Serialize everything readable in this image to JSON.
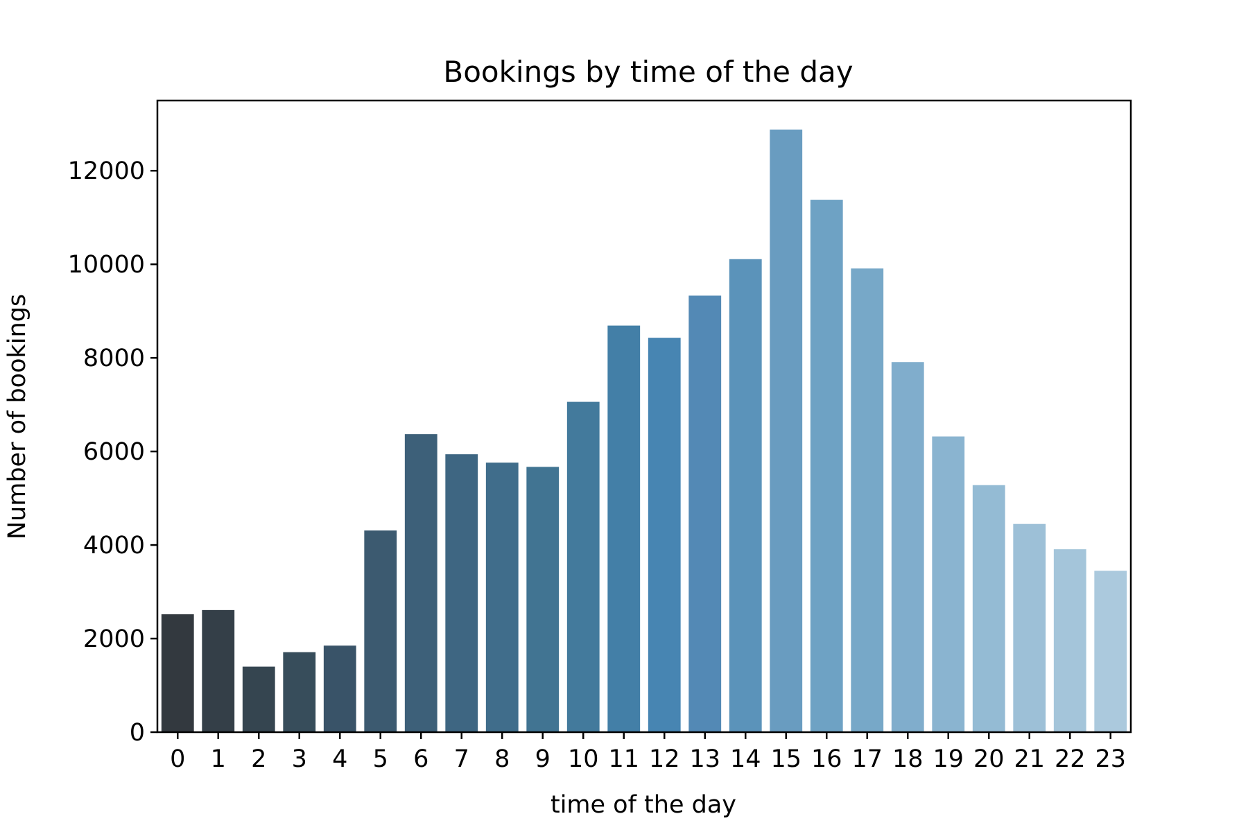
{
  "chart_data": {
    "type": "bar",
    "title": "Bookings by time of the day",
    "xlabel": "time of the day",
    "ylabel": "Number of bookings",
    "categories": [
      "0",
      "1",
      "2",
      "3",
      "4",
      "5",
      "6",
      "7",
      "8",
      "9",
      "10",
      "11",
      "12",
      "13",
      "14",
      "15",
      "16",
      "17",
      "18",
      "19",
      "20",
      "21",
      "22",
      "23"
    ],
    "values": [
      2520,
      2610,
      1400,
      1710,
      1850,
      4310,
      6370,
      5940,
      5760,
      5670,
      7060,
      8690,
      8430,
      9330,
      10110,
      12880,
      11380,
      9910,
      7910,
      6320,
      5280,
      4450,
      3910,
      3450
    ],
    "colors": [
      "#33393f",
      "#343f48",
      "#354550",
      "#374d5b",
      "#395368",
      "#3c5a70",
      "#3d6079",
      "#3e6682",
      "#406d8b",
      "#417492",
      "#437a9c",
      "#437fa7",
      "#4785b2",
      "#5389b5",
      "#5b93ba",
      "#699cc0",
      "#6ea2c4",
      "#77a8c8",
      "#80adcc",
      "#8ab4d0",
      "#94bbd4",
      "#9dc0d7",
      "#a4c5da",
      "#abc9dd"
    ],
    "yticks": [
      0,
      2000,
      4000,
      6000,
      8000,
      10000,
      12000
    ],
    "ylim": [
      0,
      13500
    ],
    "grid": false,
    "legend": false
  }
}
